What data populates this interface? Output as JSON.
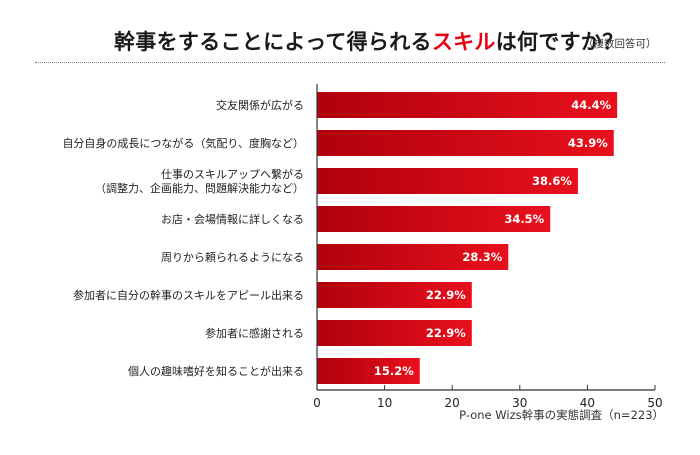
{
  "header": {
    "title_part1": "幹事をすることによって得られる",
    "title_highlight": "スキル",
    "title_part2": "は何ですか？",
    "note": "（複数回答可）"
  },
  "source": "P-one Wizs幹事の実態調査（n=223）",
  "colors": {
    "bar_dark": "#b0000d",
    "bar_light": "#e8101c",
    "highlight": "#e60012"
  },
  "chart_data": {
    "type": "bar",
    "orientation": "horizontal",
    "categories": [
      "交友関係が広がる",
      "自分自身の成長につながる（気配り、度胸など）",
      "仕事のスキルアップへ繋がる\n（調整力、企画能力、問題解決能力など）",
      "お店・会場情報に詳しくなる",
      "周りから頼られるようになる",
      "参加者に自分の幹事のスキルをアピール出来る",
      "参加者に感謝される",
      "個人の趣味嗜好を知ることが出来る"
    ],
    "values": [
      44.4,
      43.9,
      38.6,
      34.5,
      28.3,
      22.9,
      22.9,
      15.2
    ],
    "value_labels": [
      "44.4%",
      "43.9%",
      "38.6%",
      "34.5%",
      "28.3%",
      "22.9%",
      "22.9%",
      "15.2%"
    ],
    "xlim": [
      0,
      50
    ],
    "xticks": [
      0,
      10,
      20,
      30,
      40,
      50
    ],
    "grid": false,
    "legend": "none"
  }
}
